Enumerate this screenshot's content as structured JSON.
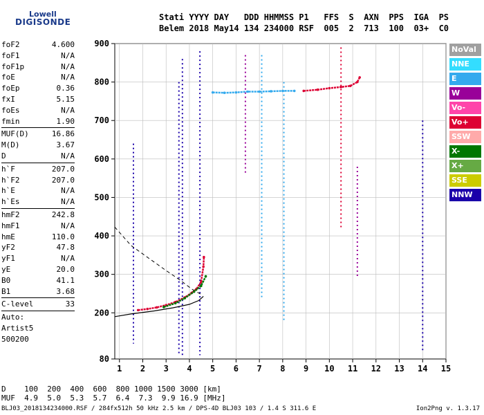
{
  "logo": {
    "line1": "Lowell",
    "line2": "DIGISONDE"
  },
  "header": {
    "line1": "Stati YYYY DAY   DDD HHMMSS P1   FFS  S  AXN  PPS  IGA  PS",
    "line2": "Belem 2018 May14 134 234000 RSF  005  2  713  100  03+  C0"
  },
  "params": [
    {
      "k": "foF2",
      "v": "4.600"
    },
    {
      "k": "foF1",
      "v": "N/A"
    },
    {
      "k": "foF1p",
      "v": "N/A"
    },
    {
      "k": "foE",
      "v": "N/A"
    },
    {
      "k": "foEp",
      "v": "0.36"
    },
    {
      "k": "fxI",
      "v": "5.15"
    },
    {
      "k": "foEs",
      "v": "N/A"
    },
    {
      "k": "fmin",
      "v": "1.90"
    },
    {
      "sep": true
    },
    {
      "k": "MUF(D)",
      "v": "16.86"
    },
    {
      "k": "M(D)",
      "v": "3.67"
    },
    {
      "k": "D",
      "v": "N/A"
    },
    {
      "sep": true
    },
    {
      "k": "h`F",
      "v": "207.0"
    },
    {
      "k": "h`F2",
      "v": "207.0"
    },
    {
      "k": "h`E",
      "v": "N/A"
    },
    {
      "k": "h`Es",
      "v": "N/A"
    },
    {
      "sep": true
    },
    {
      "k": "hmF2",
      "v": "242.8"
    },
    {
      "k": "hmF1",
      "v": "N/A"
    },
    {
      "k": "hmE",
      "v": "110.0"
    },
    {
      "k": "yF2",
      "v": "47.8"
    },
    {
      "k": "yF1",
      "v": "N/A"
    },
    {
      "k": "yE",
      "v": "20.0"
    },
    {
      "k": "B0",
      "v": "41.1"
    },
    {
      "k": "B1",
      "v": "3.68"
    },
    {
      "sep": true
    },
    {
      "k": "C-level",
      "v": "33"
    },
    {
      "sep": true
    },
    {
      "k": "Auto:",
      "v": ""
    },
    {
      "k": "Artist5",
      "v": ""
    },
    {
      "k": "500200",
      "v": ""
    }
  ],
  "muf_table": {
    "line1": "D    100  200  400  600  800 1000 1500 3000 [km]",
    "line2": "MUF  4.9  5.0  5.3  5.7  6.4  7.3  9.9 16.9 [MHz]"
  },
  "footer_left": "BLJ03_2018134234000.RSF / 284fx512h 50 kHz 2.5 km / DPS-4D BLJ03 103 / 1.4 S 311.6 E",
  "footer_right": "Ion2Png v. 1.3.17",
  "legend": [
    {
      "label": "NoVal",
      "color": "#a0a0a0"
    },
    {
      "label": "NNE",
      "color": "#33ddff"
    },
    {
      "label": "E",
      "color": "#33aaee"
    },
    {
      "label": "W",
      "color": "#990099"
    },
    {
      "label": "Vo-",
      "color": "#ff44aa"
    },
    {
      "label": "Vo+",
      "color": "#dd0033"
    },
    {
      "label": "SSW",
      "color": "#ffaaaa"
    },
    {
      "label": "X-",
      "color": "#007700"
    },
    {
      "label": "X+",
      "color": "#66aa44"
    },
    {
      "label": "SSE",
      "color": "#cccc00"
    },
    {
      "label": "NNW",
      "color": "#1a00aa"
    }
  ],
  "chart_data": {
    "type": "scatter",
    "xlim": [
      0.8,
      15
    ],
    "ylim": [
      80,
      900
    ],
    "x_ticks": [
      1,
      2,
      3,
      4,
      5,
      6,
      7,
      8,
      9,
      10,
      11,
      12,
      13,
      14,
      15
    ],
    "y_ticks": [
      80,
      200,
      300,
      400,
      500,
      600,
      700,
      800,
      900
    ],
    "grid": true,
    "traces": [
      {
        "name": "Vo+",
        "color": "#dd0033",
        "points": [
          [
            1.8,
            207
          ],
          [
            2.2,
            210
          ],
          [
            2.6,
            214
          ],
          [
            3.0,
            220
          ],
          [
            3.4,
            228
          ],
          [
            3.8,
            240
          ],
          [
            4.1,
            252
          ],
          [
            4.3,
            262
          ],
          [
            4.5,
            280
          ],
          [
            4.6,
            320
          ],
          [
            4.62,
            345
          ]
        ]
      },
      {
        "name": "X-",
        "color": "#007700",
        "points": [
          [
            2.9,
            215
          ],
          [
            3.4,
            225
          ],
          [
            3.8,
            238
          ],
          [
            4.2,
            255
          ],
          [
            4.5,
            270
          ],
          [
            4.7,
            295
          ]
        ]
      },
      {
        "name": "Vo+",
        "color": "#dd0033",
        "points": [
          [
            8.9,
            777
          ],
          [
            9.5,
            780
          ],
          [
            10.0,
            784
          ],
          [
            10.5,
            787
          ],
          [
            10.9,
            790
          ],
          [
            11.2,
            800
          ],
          [
            11.3,
            812
          ]
        ]
      },
      {
        "name": "E",
        "color": "#33aaee",
        "points": [
          [
            5.0,
            773
          ],
          [
            5.5,
            772
          ],
          [
            6.0,
            773
          ],
          [
            6.5,
            775
          ],
          [
            7.0,
            775
          ],
          [
            7.5,
            776
          ],
          [
            8.0,
            777
          ],
          [
            8.5,
            777
          ]
        ]
      }
    ],
    "vertical_streaks": [
      {
        "x": 1.6,
        "y0": 120,
        "y1": 640,
        "color": "#1a00aa"
      },
      {
        "x": 3.55,
        "y0": 90,
        "y1": 800,
        "color": "#1a00aa"
      },
      {
        "x": 3.7,
        "y0": 90,
        "y1": 860,
        "color": "#1a00aa"
      },
      {
        "x": 4.45,
        "y0": 90,
        "y1": 880,
        "color": "#1a00aa"
      },
      {
        "x": 6.4,
        "y0": 560,
        "y1": 870,
        "color": "#990099"
      },
      {
        "x": 7.1,
        "y0": 240,
        "y1": 870,
        "color": "#33aaee"
      },
      {
        "x": 8.05,
        "y0": 180,
        "y1": 800,
        "color": "#33aaee"
      },
      {
        "x": 10.5,
        "y0": 420,
        "y1": 890,
        "color": "#dd0033"
      },
      {
        "x": 11.2,
        "y0": 290,
        "y1": 580,
        "color": "#990099"
      },
      {
        "x": 14.0,
        "y0": 100,
        "y1": 700,
        "color": "#1a00aa"
      }
    ],
    "profile_solid": [
      [
        0.8,
        190
      ],
      [
        1.5,
        197
      ],
      [
        2.5,
        205
      ],
      [
        3.3,
        213
      ],
      [
        4.0,
        222
      ],
      [
        4.4,
        232
      ],
      [
        4.6,
        243
      ]
    ],
    "profile_dashed": [
      [
        0.8,
        423
      ],
      [
        1.5,
        375
      ],
      [
        2.3,
        340
      ],
      [
        3.0,
        310
      ],
      [
        3.6,
        285
      ],
      [
        4.1,
        262
      ],
      [
        4.5,
        248
      ]
    ]
  }
}
